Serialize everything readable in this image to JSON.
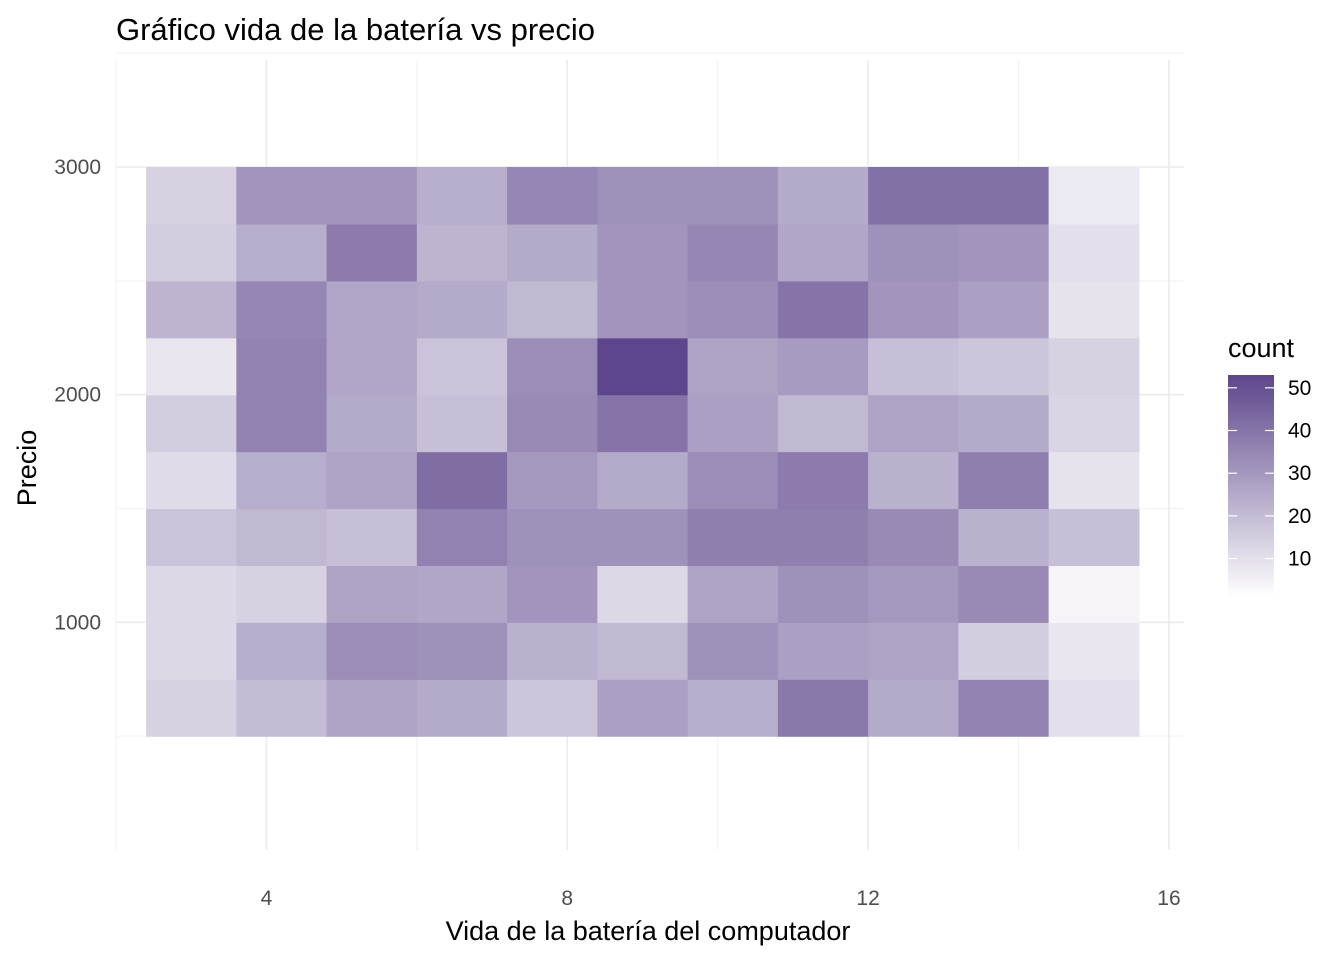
{
  "chart_data": {
    "type": "heatmap",
    "title": "Gráfico vida de la batería vs precio",
    "xlabel": "Vida de la batería del computador",
    "ylabel": "Precio",
    "x_ticks": [
      4,
      8,
      12,
      16
    ],
    "y_ticks": [
      1000,
      2000,
      3000
    ],
    "xlim": [
      2,
      16.2
    ],
    "ylim": [
      0,
      3470
    ],
    "grid": true,
    "x_bins": [
      3,
      4.2,
      5.4,
      6.6,
      7.8,
      9,
      10.2,
      11.4,
      12.6,
      13.8,
      15
    ],
    "x_bin_width": 1.2,
    "y_bins": [
      625,
      875,
      1125,
      1375,
      1625,
      1875,
      2125,
      2375,
      2625,
      2875
    ],
    "y_bin_height": 250,
    "counts": [
      [
        14,
        20,
        27,
        25,
        17,
        28,
        24,
        39,
        25,
        36,
        10
      ],
      [
        12,
        24,
        33,
        32,
        23,
        21,
        32,
        28,
        27,
        15,
        8
      ],
      [
        12,
        14,
        27,
        26,
        31,
        12,
        27,
        32,
        30,
        34,
        4
      ],
      [
        18,
        21,
        19,
        36,
        32,
        32,
        37,
        37,
        34,
        23,
        19
      ],
      [
        11,
        24,
        27,
        42,
        30,
        25,
        33,
        38,
        23,
        37,
        9
      ],
      [
        15,
        36,
        25,
        19,
        34,
        40,
        28,
        21,
        27,
        25,
        13
      ],
      [
        8,
        36,
        26,
        18,
        33,
        53,
        27,
        29,
        19,
        17,
        14
      ],
      [
        22,
        35,
        26,
        25,
        21,
        31,
        33,
        40,
        31,
        28,
        9
      ],
      [
        15,
        24,
        38,
        22,
        25,
        31,
        35,
        26,
        32,
        31,
        10
      ],
      [
        14,
        31,
        31,
        24,
        35,
        32,
        32,
        25,
        41,
        41,
        7
      ]
    ],
    "legend": {
      "title": "count",
      "position": "right",
      "ticks": [
        10,
        20,
        30,
        40,
        50
      ],
      "min": 1,
      "max": 53,
      "low_color": "#ffffff",
      "high_color": "#5d468b"
    }
  }
}
